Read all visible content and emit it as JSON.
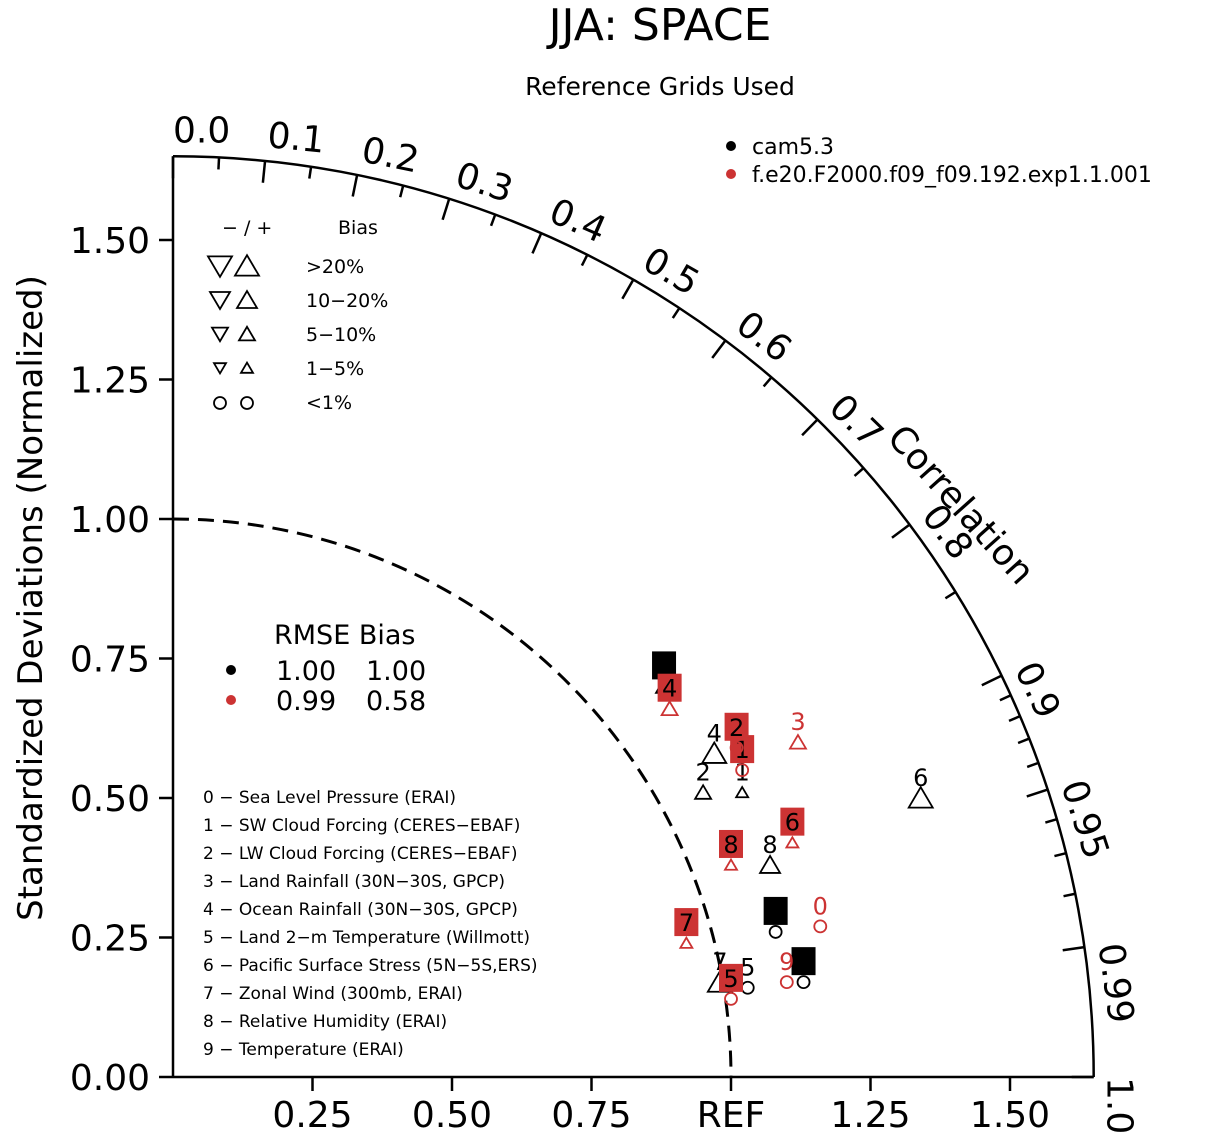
{
  "chart_data": {
    "type": "scatter",
    "subtype": "taylor-diagram",
    "title": "JJA: SPACE",
    "subtitle": "Reference Grids Used",
    "ylabel": "Standardized Deviations (Normalized)",
    "correlation_label": "Correlation",
    "ylim": [
      0,
      1.65
    ],
    "x_tick_labels": [
      "0.25",
      "0.50",
      "0.75",
      "REF",
      "1.25",
      "1.50"
    ],
    "y_tick_labels": [
      "0.00",
      "0.25",
      "0.50",
      "0.75",
      "1.00",
      "1.25",
      "1.50"
    ],
    "correlation_tick_labels": [
      "0.0",
      "0.1",
      "0.2",
      "0.3",
      "0.4",
      "0.5",
      "0.6",
      "0.7",
      "0.8",
      "0.9",
      "0.95",
      "0.99",
      "1.0"
    ],
    "reference_arc_radius": 1.0,
    "bias_legend": {
      "header_signs": "− / +",
      "header_bias": "Bias",
      "rows": [
        ">20%",
        "10−20%",
        "5−10%",
        "1−5%",
        "<1%"
      ]
    },
    "models": [
      {
        "name": "cam5.3",
        "color": "#000000"
      },
      {
        "name": "f.e20.F2000.f09_f09.192.exp1.1.001",
        "color": "#cc3333"
      }
    ],
    "rmse_bias": {
      "header": "RMSE Bias",
      "rows": [
        {
          "rmse": "1.00",
          "bias": "1.00",
          "color": "#000000"
        },
        {
          "rmse": "0.99",
          "bias": "0.58",
          "color": "#cc3333"
        }
      ]
    },
    "cases": [
      "0 − Sea Level Pressure (ERAI)",
      "1 − SW Cloud Forcing (CERES−EBAF)",
      "2 − LW Cloud Forcing (CERES−EBAF)",
      "3 − Land Rainfall (30N−30S, GPCP)",
      "4 − Ocean Rainfall (30N−30S, GPCP)",
      "5 − Land 2−m Temperature (Willmott)",
      "6 − Pacific Surface Stress (5N−5S,ERS)",
      "7 − Zonal Wind (300mb, ERAI)",
      "8 − Relative Humidity (ERAI)",
      "9 − Temperature (ERAI)"
    ],
    "series": [
      {
        "name": "cam5.3",
        "color": "#000000",
        "points": [
          {
            "id": "0",
            "x": 1.08,
            "y": 0.26,
            "bias": "<1%",
            "dir": "none",
            "label_style": "box"
          },
          {
            "id": "1",
            "x": 1.02,
            "y": 0.51,
            "bias": "1-5%",
            "dir": "+",
            "label_style": "plain"
          },
          {
            "id": "2",
            "x": 0.95,
            "y": 0.51,
            "bias": "5-10%",
            "dir": "+",
            "label_style": "plain"
          },
          {
            "id": "3",
            "x": 0.88,
            "y": 0.7,
            "bias": "5-10%",
            "dir": "+",
            "label_style": "box"
          },
          {
            "id": "4",
            "x": 0.97,
            "y": 0.58,
            "bias": ">20%",
            "dir": "+",
            "label_style": "plain"
          },
          {
            "id": "5",
            "x": 1.03,
            "y": 0.16,
            "bias": "<1%",
            "dir": "none",
            "label_style": "plain"
          },
          {
            "id": "6",
            "x": 1.34,
            "y": 0.5,
            "bias": ">20%",
            "dir": "+",
            "label_style": "plain"
          },
          {
            "id": "7",
            "x": 0.98,
            "y": 0.17,
            "bias": ">20%",
            "dir": "+",
            "label_style": "plain"
          },
          {
            "id": "8",
            "x": 1.07,
            "y": 0.38,
            "bias": "10-20%",
            "dir": "+",
            "label_style": "plain"
          },
          {
            "id": "9",
            "x": 1.13,
            "y": 0.17,
            "bias": "<1%",
            "dir": "none",
            "label_style": "box"
          }
        ]
      },
      {
        "name": "f.e20.F2000.f09_f09.192.exp1.1.001",
        "color": "#cc3333",
        "points": [
          {
            "id": "0",
            "x": 1.16,
            "y": 0.27,
            "bias": "<1%",
            "dir": "none",
            "label_style": "plain"
          },
          {
            "id": "1",
            "x": 1.02,
            "y": 0.55,
            "bias": "<1%",
            "dir": "none",
            "label_style": "box"
          },
          {
            "id": "2",
            "x": 1.01,
            "y": 0.59,
            "bias": "<1%",
            "dir": "none",
            "label_style": "box"
          },
          {
            "id": "3",
            "x": 1.12,
            "y": 0.6,
            "bias": "5-10%",
            "dir": "+",
            "label_style": "plain"
          },
          {
            "id": "4",
            "x": 0.89,
            "y": 0.66,
            "bias": "5-10%",
            "dir": "+",
            "label_style": "box"
          },
          {
            "id": "5",
            "x": 1.0,
            "y": 0.14,
            "bias": "<1%",
            "dir": "none",
            "label_style": "box"
          },
          {
            "id": "6",
            "x": 1.11,
            "y": 0.42,
            "bias": "1-5%",
            "dir": "+",
            "label_style": "box"
          },
          {
            "id": "7",
            "x": 0.92,
            "y": 0.24,
            "bias": "1-5%",
            "dir": "+",
            "label_style": "box"
          },
          {
            "id": "8",
            "x": 1.0,
            "y": 0.38,
            "bias": "1-5%",
            "dir": "+",
            "label_style": "box"
          },
          {
            "id": "9",
            "x": 1.1,
            "y": 0.17,
            "bias": "<1%",
            "dir": "none",
            "label_style": "plain"
          }
        ]
      }
    ]
  }
}
